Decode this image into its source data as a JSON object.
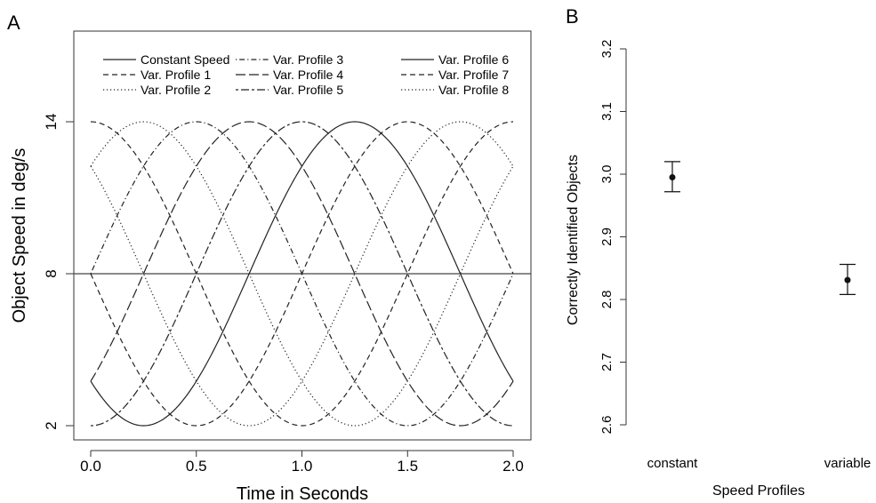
{
  "chart_data": [
    {
      "panel": "A",
      "type": "line",
      "xlabel": "Time in Seconds",
      "ylabel": "Object Speed in deg/s",
      "xlim": [
        0,
        2
      ],
      "ylim": [
        2,
        14
      ],
      "xticks": [
        "0.0",
        "0.5",
        "1.0",
        "1.5",
        "2.0"
      ],
      "xtick_values": [
        0,
        0.5,
        1.0,
        1.5,
        2.0
      ],
      "yticks": [
        "2",
        "8",
        "14"
      ],
      "ytick_values": [
        2,
        8,
        14
      ],
      "legend_placement": "top, inside plot area, 3 columns",
      "baseline": 8,
      "amplitude": 6,
      "period_seconds": 2,
      "series": [
        {
          "name": "Constant Speed",
          "kind": "constant",
          "value": 8,
          "dash": "solid"
        },
        {
          "name": "Var. Profile 1",
          "kind": "sine",
          "phase_deg": 90,
          "dash": "dashed"
        },
        {
          "name": "Var. Profile 2",
          "kind": "sine",
          "phase_deg": 45,
          "dash": "dotted"
        },
        {
          "name": "Var. Profile 3",
          "kind": "sine",
          "phase_deg": 0,
          "dash": "dotdash"
        },
        {
          "name": "Var. Profile 4",
          "kind": "sine",
          "phase_deg": 315,
          "dash": "longdash"
        },
        {
          "name": "Var. Profile 5",
          "kind": "sine",
          "phase_deg": 270,
          "dash": "twodash"
        },
        {
          "name": "Var. Profile 6",
          "kind": "sine",
          "phase_deg": 225,
          "dash": "solid"
        },
        {
          "name": "Var. Profile 7",
          "kind": "sine",
          "phase_deg": 180,
          "dash": "dashed"
        },
        {
          "name": "Var. Profile 8",
          "kind": "sine",
          "phase_deg": 135,
          "dash": "dotted"
        }
      ]
    },
    {
      "panel": "B",
      "type": "scatter",
      "xlabel": "Speed Profiles",
      "ylabel": "Correctly Identified Objects",
      "ylim": [
        2.6,
        3.2
      ],
      "yticks": [
        "2.6",
        "2.7",
        "2.8",
        "2.9",
        "3.0",
        "3.1",
        "3.2"
      ],
      "ytick_values": [
        2.6,
        2.7,
        2.8,
        2.9,
        3.0,
        3.1,
        3.2
      ],
      "categories": [
        "constant",
        "variable"
      ],
      "values": [
        2.995,
        2.831
      ],
      "error_low": [
        2.972,
        2.808
      ],
      "error_high": [
        3.02,
        2.856
      ]
    }
  ]
}
